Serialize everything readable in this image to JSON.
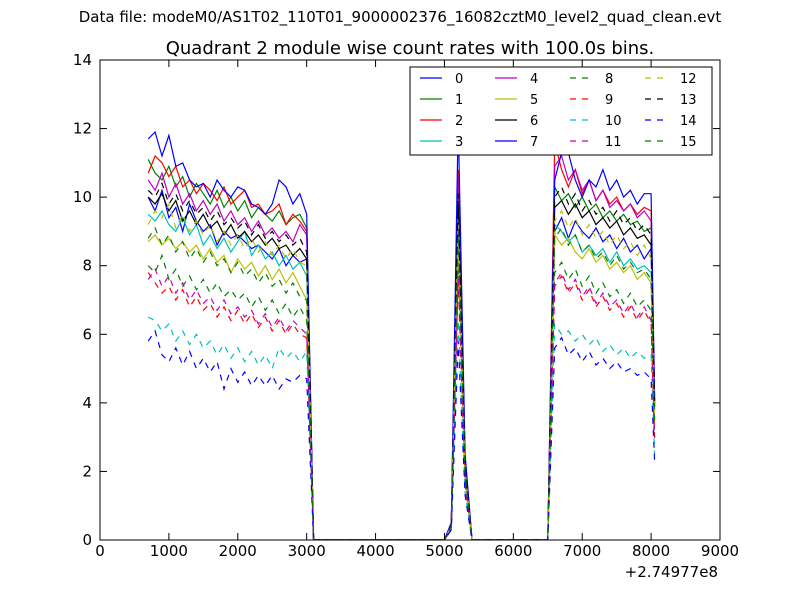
{
  "figure": {
    "suptitle": "Data file: modeM0/AS1T02_110T01_9000002376_16082cztM0_level2_quad_clean.evt"
  },
  "chart_data": {
    "type": "line",
    "title": "Quadrant 2 module wise count rates with 100.0s bins.",
    "xlabel": "",
    "ylabel": "",
    "x_offset_label": "+2.74977e8",
    "xlim": [
      0,
      9000
    ],
    "ylim": [
      0,
      14
    ],
    "x_ticks": [
      0,
      1000,
      2000,
      3000,
      4000,
      5000,
      6000,
      7000,
      8000,
      9000
    ],
    "y_ticks": [
      0,
      2,
      4,
      6,
      8,
      10,
      12,
      14
    ],
    "grid": false,
    "legend_position": "upper-right",
    "legend_columns": 4,
    "x": [
      700,
      800,
      900,
      1000,
      1100,
      1200,
      1300,
      1400,
      1500,
      1600,
      1700,
      1800,
      1900,
      2000,
      2100,
      2200,
      2300,
      2400,
      2500,
      2600,
      2700,
      2800,
      2900,
      3000,
      3100,
      3200,
      5000,
      5100,
      5200,
      5300,
      5400,
      5500,
      6500,
      6600,
      6700,
      6800,
      6900,
      7000,
      7100,
      7200,
      7300,
      7400,
      7500,
      7600,
      7700,
      7800,
      7900,
      8000,
      8050
    ],
    "series": [
      {
        "name": "0",
        "color": "#0000ff",
        "dash": "solid",
        "values": [
          10.0,
          9.6,
          10.2,
          9.4,
          9.7,
          9.0,
          9.8,
          9.3,
          9.0,
          9.2,
          8.6,
          9.0,
          8.8,
          8.9,
          8.7,
          8.5,
          8.6,
          8.4,
          8.2,
          8.5,
          8.0,
          8.3,
          8.1,
          8.2,
          0.0,
          0.0,
          0.0,
          0.4,
          9.2,
          2.0,
          0.0,
          0.0,
          0.0,
          9.0,
          9.4,
          8.8,
          9.3,
          9.0,
          8.8,
          9.1,
          8.7,
          8.9,
          8.5,
          8.8,
          8.4,
          8.6,
          8.2,
          8.5,
          3.8
        ]
      },
      {
        "name": "1",
        "color": "#008000",
        "dash": "solid",
        "values": [
          11.1,
          10.7,
          10.5,
          10.9,
          10.3,
          10.6,
          10.0,
          10.4,
          10.1,
          9.8,
          10.2,
          9.7,
          10.0,
          9.6,
          9.9,
          9.4,
          9.7,
          9.5,
          9.3,
          9.6,
          9.2,
          9.4,
          9.5,
          9.1,
          0.0,
          0.0,
          0.0,
          0.4,
          10.0,
          2.2,
          0.0,
          0.0,
          0.0,
          10.3,
          9.9,
          10.1,
          9.7,
          10.0,
          9.6,
          9.8,
          9.4,
          9.6,
          9.3,
          9.5,
          9.2,
          9.3,
          9.0,
          9.1,
          4.0
        ]
      },
      {
        "name": "2",
        "color": "#ff0000",
        "dash": "solid",
        "values": [
          10.7,
          11.2,
          11.0,
          10.6,
          10.9,
          10.3,
          10.5,
          10.1,
          10.4,
          10.2,
          9.9,
          10.3,
          9.8,
          10.0,
          10.2,
          9.7,
          9.8,
          9.5,
          9.6,
          9.8,
          9.2,
          9.5,
          9.3,
          9.0,
          0.0,
          0.0,
          0.0,
          0.5,
          10.8,
          2.4,
          0.0,
          0.0,
          0.0,
          11.6,
          10.8,
          10.3,
          10.8,
          10.1,
          10.5,
          9.9,
          10.2,
          9.8,
          10.0,
          9.6,
          9.8,
          9.5,
          9.7,
          9.6,
          4.1
        ]
      },
      {
        "name": "3",
        "color": "#00bfbf",
        "dash": "solid",
        "values": [
          9.5,
          9.3,
          9.6,
          9.2,
          9.0,
          9.4,
          8.9,
          9.2,
          8.6,
          8.9,
          8.5,
          8.8,
          8.4,
          8.7,
          9.0,
          8.3,
          8.6,
          8.2,
          8.4,
          8.0,
          8.3,
          7.9,
          8.1,
          7.7,
          0.0,
          0.0,
          0.0,
          0.4,
          9.4,
          2.0,
          0.0,
          0.0,
          0.0,
          9.2,
          9.0,
          8.7,
          8.9,
          8.4,
          8.6,
          8.3,
          8.5,
          8.1,
          8.4,
          8.0,
          8.2,
          7.9,
          8.0,
          7.8,
          3.5
        ]
      },
      {
        "name": "4",
        "color": "#bf00bf",
        "dash": "solid",
        "values": [
          10.5,
          10.2,
          10.7,
          10.0,
          10.4,
          9.8,
          10.1,
          9.6,
          9.9,
          9.5,
          9.8,
          9.3,
          9.6,
          9.2,
          9.4,
          9.0,
          9.3,
          8.9,
          9.1,
          8.8,
          9.0,
          8.7,
          9.2,
          8.9,
          0.0,
          0.0,
          0.0,
          0.5,
          10.6,
          2.3,
          0.0,
          0.0,
          0.0,
          10.9,
          11.2,
          10.5,
          10.8,
          10.2,
          10.5,
          9.9,
          10.2,
          9.7,
          9.9,
          9.6,
          9.8,
          9.4,
          9.6,
          9.3,
          4.0
        ]
      },
      {
        "name": "5",
        "color": "#bfbf00",
        "dash": "solid",
        "values": [
          8.7,
          8.9,
          8.6,
          8.8,
          8.5,
          8.7,
          8.4,
          8.6,
          8.2,
          8.5,
          8.1,
          8.3,
          7.8,
          8.2,
          7.9,
          8.1,
          7.7,
          8.0,
          7.6,
          7.9,
          7.5,
          7.8,
          7.4,
          7.0,
          0.0,
          0.0,
          0.0,
          0.4,
          8.6,
          1.9,
          0.0,
          0.0,
          0.0,
          8.9,
          8.6,
          8.8,
          8.4,
          8.2,
          8.5,
          8.1,
          8.3,
          7.9,
          8.1,
          7.8,
          8.0,
          7.6,
          7.8,
          7.5,
          3.4
        ]
      },
      {
        "name": "6",
        "color": "#000000",
        "dash": "solid",
        "values": [
          10.0,
          9.8,
          10.1,
          9.6,
          9.9,
          9.3,
          9.6,
          9.2,
          9.5,
          9.1,
          9.3,
          8.9,
          9.2,
          8.8,
          9.0,
          8.7,
          8.9,
          8.6,
          8.8,
          8.5,
          8.6,
          8.3,
          8.5,
          8.2,
          0.0,
          0.0,
          0.0,
          0.4,
          9.8,
          2.1,
          0.0,
          0.0,
          0.0,
          9.7,
          9.9,
          9.5,
          9.8,
          9.4,
          9.6,
          9.2,
          9.4,
          9.1,
          9.3,
          8.9,
          9.1,
          8.8,
          8.9,
          8.6,
          3.9
        ]
      },
      {
        "name": "7",
        "color": "#0000ff",
        "dash": "solid",
        "values": [
          11.7,
          11.9,
          11.2,
          11.8,
          10.9,
          11.0,
          10.5,
          10.3,
          10.4,
          10.0,
          10.5,
          10.2,
          10.0,
          10.3,
          10.2,
          9.8,
          9.7,
          9.5,
          9.8,
          10.5,
          10.3,
          9.8,
          10.1,
          9.5,
          0.0,
          0.0,
          0.0,
          0.5,
          12.2,
          2.5,
          0.0,
          0.0,
          0.0,
          10.5,
          11.3,
          11.3,
          10.5,
          10.0,
          10.5,
          10.3,
          10.8,
          10.2,
          10.5,
          10.0,
          10.2,
          9.8,
          10.1,
          10.1,
          4.2
        ]
      },
      {
        "name": "8",
        "color": "#008000",
        "dash": "dashed",
        "values": [
          8.0,
          7.8,
          8.3,
          7.6,
          7.9,
          7.4,
          7.7,
          7.3,
          7.6,
          7.2,
          7.5,
          7.1,
          7.3,
          7.0,
          7.2,
          6.8,
          7.1,
          6.7,
          7.0,
          6.6,
          6.9,
          6.5,
          6.8,
          6.4,
          0.0,
          0.0,
          0.0,
          0.3,
          7.9,
          1.7,
          0.0,
          0.0,
          0.0,
          7.8,
          8.1,
          7.6,
          7.9,
          7.4,
          7.7,
          7.2,
          7.5,
          7.1,
          7.3,
          6.9,
          7.2,
          6.8,
          7.0,
          6.7,
          3.0
        ]
      },
      {
        "name": "9",
        "color": "#ff0000",
        "dash": "dashed",
        "values": [
          7.8,
          7.5,
          7.2,
          7.4,
          7.0,
          7.3,
          6.8,
          7.1,
          6.7,
          6.9,
          6.5,
          6.8,
          6.4,
          6.7,
          6.3,
          6.6,
          6.2,
          6.5,
          6.1,
          6.4,
          6.0,
          6.3,
          6.0,
          5.9,
          0.0,
          0.0,
          0.0,
          0.3,
          7.6,
          1.6,
          0.0,
          0.0,
          0.0,
          7.4,
          7.7,
          7.2,
          7.5,
          7.0,
          7.3,
          6.8,
          7.1,
          6.7,
          6.9,
          6.5,
          6.8,
          6.4,
          6.7,
          6.3,
          2.9
        ]
      },
      {
        "name": "10",
        "color": "#00bfbf",
        "dash": "dashed",
        "values": [
          6.5,
          6.4,
          6.1,
          6.3,
          5.8,
          6.1,
          5.7,
          6.0,
          5.6,
          5.8,
          5.4,
          5.7,
          5.3,
          5.6,
          5.2,
          5.5,
          5.1,
          5.4,
          5.0,
          5.6,
          5.3,
          5.5,
          5.2,
          5.5,
          0.0,
          0.0,
          0.0,
          0.3,
          6.4,
          1.4,
          0.0,
          0.0,
          0.0,
          6.3,
          6.0,
          6.1,
          5.8,
          6.0,
          5.7,
          5.9,
          5.5,
          5.7,
          5.4,
          5.6,
          5.3,
          5.5,
          5.3,
          5.4,
          2.5
        ]
      },
      {
        "name": "11",
        "color": "#bf00bf",
        "dash": "dashed",
        "values": [
          7.6,
          7.9,
          7.4,
          7.7,
          7.2,
          7.5,
          7.0,
          7.3,
          6.9,
          7.1,
          6.7,
          7.0,
          6.6,
          6.8,
          6.5,
          6.7,
          6.3,
          6.6,
          6.2,
          6.5,
          6.1,
          6.4,
          6.2,
          6.0,
          0.0,
          0.0,
          0.0,
          0.3,
          7.7,
          1.7,
          0.0,
          0.0,
          0.0,
          7.5,
          7.8,
          7.3,
          7.6,
          7.1,
          7.4,
          6.9,
          7.2,
          6.8,
          7.0,
          6.6,
          6.9,
          6.5,
          6.8,
          6.4,
          3.0
        ]
      },
      {
        "name": "12",
        "color": "#bfbf00",
        "dash": "dashed",
        "values": [
          9.2,
          9.6,
          9.4,
          9.8,
          9.1,
          9.5,
          9.0,
          9.3,
          8.9,
          9.2,
          8.7,
          9.0,
          8.6,
          8.9,
          8.5,
          8.8,
          8.4,
          8.7,
          8.3,
          8.6,
          8.2,
          8.5,
          8.1,
          8.0,
          0.0,
          0.0,
          0.0,
          0.4,
          9.4,
          2.0,
          0.0,
          0.0,
          0.0,
          9.3,
          9.6,
          9.1,
          9.4,
          8.9,
          9.2,
          8.8,
          9.0,
          8.6,
          8.9,
          8.5,
          8.7,
          8.3,
          8.6,
          8.2,
          3.7
        ]
      },
      {
        "name": "13",
        "color": "#000000",
        "dash": "dashed",
        "values": [
          10.2,
          10.0,
          10.4,
          9.8,
          10.1,
          9.6,
          9.9,
          9.5,
          9.7,
          9.3,
          9.6,
          9.2,
          9.4,
          9.1,
          9.3,
          8.9,
          9.2,
          8.8,
          9.0,
          8.7,
          8.9,
          8.6,
          8.8,
          8.4,
          0.0,
          0.0,
          0.0,
          0.4,
          10.1,
          2.2,
          0.0,
          0.0,
          0.0,
          10.0,
          10.3,
          9.8,
          10.1,
          9.6,
          9.9,
          9.5,
          9.7,
          9.3,
          9.6,
          9.2,
          9.4,
          9.0,
          9.2,
          8.9,
          3.9
        ]
      },
      {
        "name": "14",
        "color": "#0000ff",
        "dash": "dashed",
        "values": [
          5.8,
          6.1,
          5.4,
          5.2,
          5.6,
          5.1,
          5.5,
          5.0,
          5.3,
          4.9,
          5.2,
          4.4,
          5.0,
          4.6,
          4.9,
          4.5,
          4.8,
          4.5,
          4.8,
          4.4,
          4.7,
          4.6,
          4.8,
          4.7,
          0.0,
          0.0,
          0.0,
          0.3,
          5.8,
          1.3,
          0.0,
          0.0,
          0.0,
          5.6,
          5.9,
          5.4,
          5.6,
          5.2,
          5.5,
          5.1,
          5.3,
          5.0,
          5.2,
          4.9,
          5.0,
          4.8,
          4.9,
          4.7,
          2.3
        ]
      },
      {
        "name": "15",
        "color": "#008000",
        "dash": "dashed",
        "values": [
          8.8,
          9.1,
          8.6,
          8.9,
          8.4,
          8.7,
          8.2,
          8.5,
          8.1,
          8.4,
          8.0,
          8.2,
          7.8,
          8.1,
          7.7,
          7.9,
          7.5,
          7.8,
          7.4,
          7.6,
          7.2,
          7.5,
          7.1,
          7.0,
          0.0,
          0.0,
          0.0,
          0.4,
          8.9,
          1.9,
          0.0,
          0.0,
          0.0,
          8.8,
          9.1,
          8.6,
          8.9,
          8.4,
          8.6,
          8.2,
          8.4,
          8.0,
          8.3,
          7.9,
          8.1,
          7.8,
          7.9,
          7.6,
          3.4
        ]
      }
    ]
  }
}
